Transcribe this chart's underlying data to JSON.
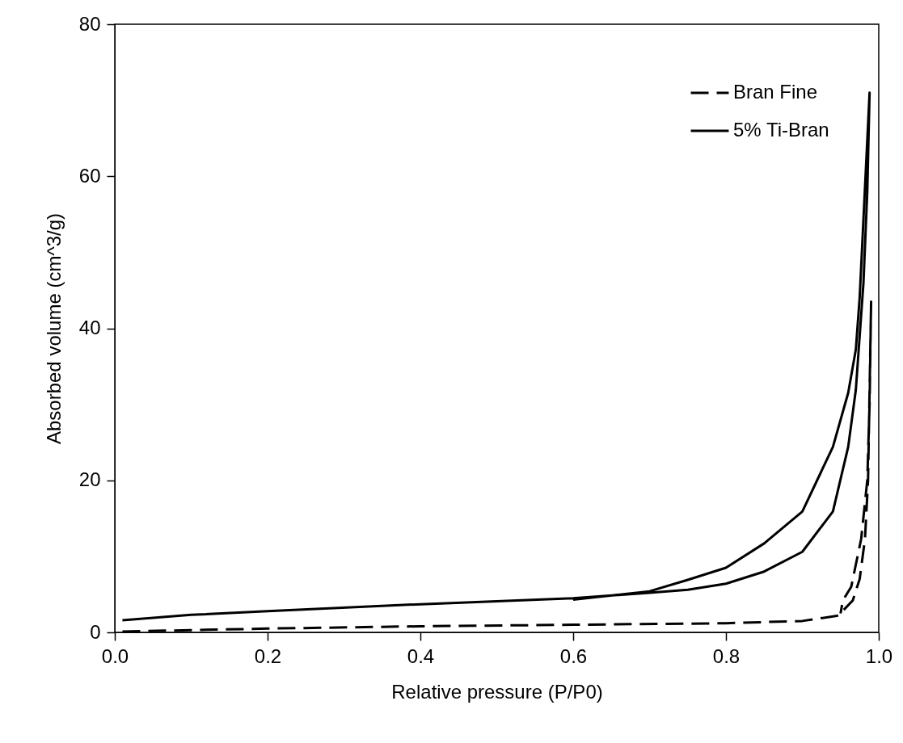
{
  "chart_data": {
    "type": "line",
    "xlabel": "Relative pressure (P/P0)",
    "ylabel": "Absorbed volume (cm^3/g)",
    "xlim": [
      0,
      1
    ],
    "xticks": [
      {
        "value": 0,
        "label": "0.0"
      },
      0.2,
      0.4,
      0.6,
      0.8,
      {
        "value": 1,
        "label": "1.0"
      }
    ],
    "ylim": [
      0,
      80
    ],
    "yticks": [
      0,
      20,
      40,
      60,
      80
    ],
    "grid": false,
    "legend": "top right",
    "marker": "none",
    "series": [
      {
        "name": "Bran Fine",
        "color": "#000000",
        "line_style": "dashed",
        "x": [
          0.01,
          0.1,
          0.2,
          0.4,
          0.6,
          0.8,
          0.9,
          0.947,
          0.966,
          0.975,
          0.982,
          0.986,
          0.99,
          0.988,
          0.985,
          0.977,
          0.964,
          0.953,
          0.95
        ],
        "values": [
          0.1,
          0.3,
          0.5,
          0.8,
          1.0,
          1.2,
          1.5,
          2.2,
          4.2,
          7,
          12.3,
          20,
          43.5,
          30,
          20,
          12.3,
          6,
          4.2,
          2.5
        ]
      },
      {
        "name": "5% Ti-Bran",
        "color": "#000000",
        "line_style": "solid",
        "x": [
          0.01,
          0.1,
          0.2,
          0.4,
          0.6,
          0.7,
          0.75,
          0.8,
          0.85,
          0.9,
          0.94,
          0.96,
          0.97,
          0.98,
          0.985,
          0.988,
          0.975,
          0.97,
          0.96,
          0.94,
          0.9,
          0.85,
          0.8,
          0.75,
          0.7,
          0.6
        ],
        "values": [
          1.6,
          2.3,
          2.8,
          3.7,
          4.5,
          5.2,
          5.6,
          6.4,
          8.0,
          10.6,
          15.9,
          24.4,
          31.9,
          46,
          58,
          71,
          44,
          37.2,
          31.5,
          24.4,
          15.9,
          11.7,
          8.5,
          6.9,
          5.4,
          4.3
        ]
      }
    ]
  }
}
